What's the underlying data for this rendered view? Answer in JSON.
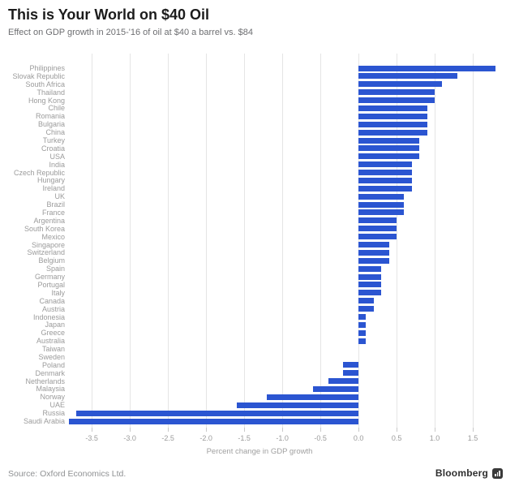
{
  "header": {
    "title": "This is Your World on $40 Oil",
    "subtitle": "Effect on GDP growth in 2015-'16 of oil at $40 a barrel vs. $84"
  },
  "footer": {
    "source": "Source: Oxford Economics Ltd.",
    "brand": "Bloomberg"
  },
  "colors": {
    "bar": "#2b55d1",
    "gridline": "#e5e5e5",
    "label_gray": "#9b9b9b",
    "title_black": "#1c1c1c"
  },
  "chart_data": {
    "type": "bar",
    "orientation": "horizontal",
    "title": "This is Your World on $40 Oil",
    "subtitle": "Effect on GDP growth in 2015-'16 of oil at $40 a barrel vs. $84",
    "xlabel": "Percent change in GDP growth",
    "xlim": [
      -3.8,
      2.0
    ],
    "x_ticks": [
      -3.5,
      -3.0,
      -2.5,
      -2.0,
      -1.5,
      -1.0,
      -0.5,
      0.0,
      0.5,
      1.0,
      1.5
    ],
    "grid": true,
    "legend": "none",
    "categories": [
      "Philippines",
      "Slovak Republic",
      "South Africa",
      "Thailand",
      "Hong Kong",
      "Chile",
      "Romania",
      "Bulgaria",
      "China",
      "Turkey",
      "Croatia",
      "USA",
      "India",
      "Czech Republic",
      "Hungary",
      "Ireland",
      "UK",
      "Brazil",
      "France",
      "Argentina",
      "South Korea",
      "Mexico",
      "Singapore",
      "Switzerland",
      "Belgium",
      "Spain",
      "Germany",
      "Portugal",
      "Italy",
      "Canada",
      "Austria",
      "Indonesia",
      "Japan",
      "Greece",
      "Australia",
      "Taiwan",
      "Sweden",
      "Poland",
      "Denmark",
      "Netherlands",
      "Malaysia",
      "Norway",
      "UAE",
      "Russia",
      "Saudi Arabia"
    ],
    "values": [
      1.8,
      1.3,
      1.1,
      1.0,
      1.0,
      0.9,
      0.9,
      0.9,
      0.9,
      0.8,
      0.8,
      0.8,
      0.7,
      0.7,
      0.7,
      0.7,
      0.6,
      0.6,
      0.6,
      0.5,
      0.5,
      0.5,
      0.4,
      0.4,
      0.4,
      0.3,
      0.3,
      0.3,
      0.3,
      0.2,
      0.2,
      0.1,
      0.1,
      0.1,
      0.1,
      0.0,
      0.0,
      -0.2,
      -0.2,
      -0.4,
      -0.6,
      -1.2,
      -1.6,
      -3.7,
      -3.8
    ]
  }
}
